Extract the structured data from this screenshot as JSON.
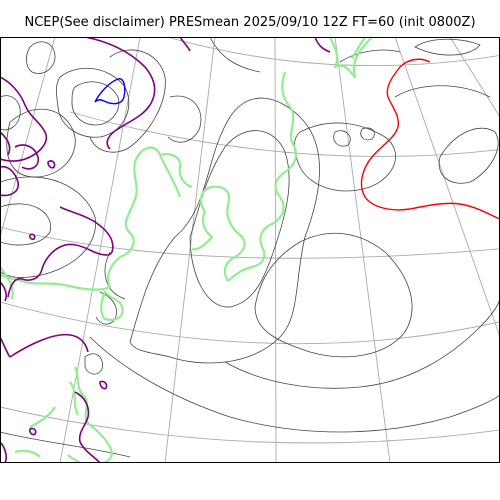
{
  "figure": {
    "title": "NCEP(See disclaimer) PRESmean 2025/09/10 12Z FT=60 (init 0800Z)"
  },
  "map": {
    "projection": "polar-stereographic",
    "graticule": "on",
    "colors": {
      "coastline": "#90ee90",
      "isobar_regular": "#444444",
      "isobar_high": "#ff0000",
      "isobar_low": "#0000ff",
      "contour_bold": "#800080",
      "graticule": "#aaaaaa"
    }
  }
}
